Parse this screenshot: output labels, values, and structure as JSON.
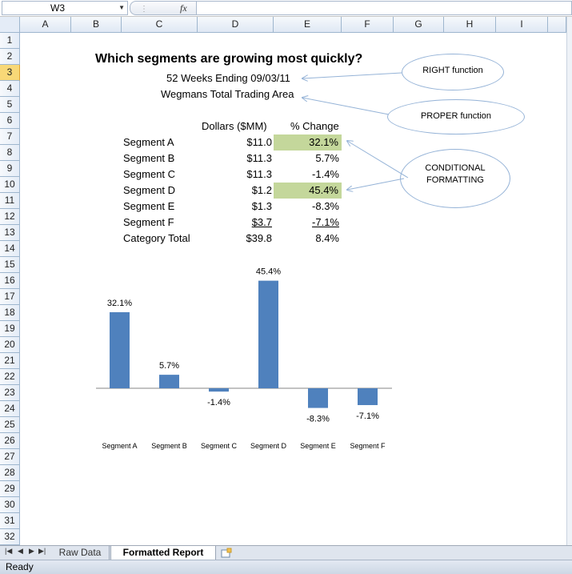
{
  "name_box": "W3",
  "fx_label": "fx",
  "columns": [
    "A",
    "B",
    "C",
    "D",
    "E",
    "F",
    "G",
    "H",
    "I"
  ],
  "rows": [
    "1",
    "2",
    "3",
    "4",
    "5",
    "6",
    "7",
    "8",
    "9",
    "10",
    "11",
    "12",
    "13",
    "14",
    "15",
    "16",
    "17",
    "18",
    "19",
    "20",
    "21",
    "22",
    "23",
    "24",
    "25",
    "26",
    "27",
    "28",
    "29",
    "30",
    "31",
    "32"
  ],
  "report": {
    "title": "Which segments are growing most quickly?",
    "subtitle1": "52 Weeks Ending 09/03/11",
    "subtitle2": "Wegmans Total Trading Area",
    "col_dollars": "Dollars ($MM)",
    "col_change": "% Change",
    "segments": [
      {
        "name": "Segment A",
        "dollars": "$11.0",
        "change": "32.1%"
      },
      {
        "name": "Segment B",
        "dollars": "$11.3",
        "change": "5.7%"
      },
      {
        "name": "Segment C",
        "dollars": "$11.3",
        "change": "-1.4%"
      },
      {
        "name": "Segment D",
        "dollars": "$1.2",
        "change": "45.4%"
      },
      {
        "name": "Segment E",
        "dollars": "$1.3",
        "change": "-8.3%"
      },
      {
        "name": "Segment F",
        "dollars": "$3.7",
        "change": "-7.1%"
      }
    ],
    "total": {
      "name": "Category Total",
      "dollars": "$39.8",
      "change": "8.4%"
    },
    "highlight_color": "#c4d79b"
  },
  "callouts": {
    "right_fn": "RIGHT function",
    "proper_fn": "PROPER function",
    "cond_line1": "CONDITIONAL",
    "cond_line2": "FORMATTING"
  },
  "chart_data": {
    "type": "bar",
    "categories": [
      "Segment A",
      "Segment B",
      "Segment C",
      "Segment D",
      "Segment E",
      "Segment F"
    ],
    "values": [
      32.1,
      5.7,
      -1.4,
      45.4,
      -8.3,
      -7.1
    ],
    "labels": [
      "32.1%",
      "5.7%",
      "-1.4%",
      "45.4%",
      "-8.3%",
      "-7.1%"
    ],
    "bar_color": "#4f81bd",
    "title": "",
    "xlabel": "",
    "ylabel": ""
  },
  "sheet_tabs": [
    "Raw Data",
    "Formatted Report"
  ],
  "status": "Ready"
}
